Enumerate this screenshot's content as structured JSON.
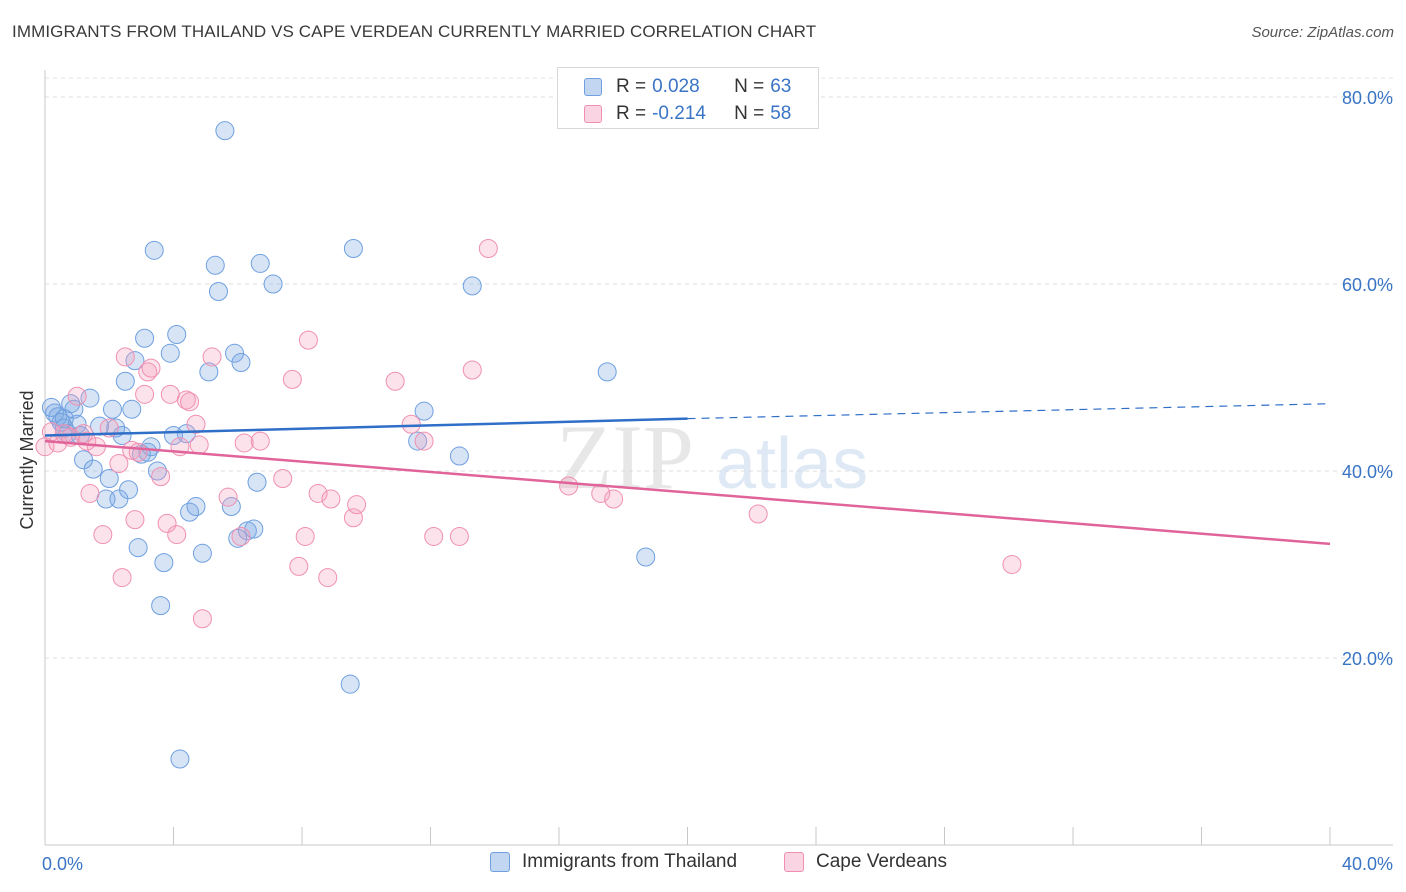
{
  "header": {
    "title": "IMMIGRANTS FROM THAILAND VS CAPE VERDEAN CURRENTLY MARRIED CORRELATION CHART",
    "source": "Source: ZipAtlas.com"
  },
  "watermark": {
    "zip": "ZIP",
    "atlas": "atlas"
  },
  "legend_top": {
    "rows": [
      {
        "r_label": "R =",
        "r_value": "0.028",
        "n_label": "N =",
        "n_value": "63",
        "color": "#6fa0e0"
      },
      {
        "r_label": "R =",
        "r_value": "-0.214",
        "n_label": "N =",
        "n_value": "58",
        "color": "#f090b0"
      }
    ]
  },
  "legend_bottom": {
    "items": [
      {
        "label": "Immigrants from Thailand",
        "color": "#6fa0e0"
      },
      {
        "label": "Cape Verdeans",
        "color": "#f090b0"
      }
    ]
  },
  "chart_data": {
    "type": "scatter",
    "title": "IMMIGRANTS FROM THAILAND VS CAPE VERDEAN CURRENTLY MARRIED CORRELATION CHART",
    "xlabel": "",
    "ylabel": "Currently Married",
    "xlim": [
      0,
      40
    ],
    "ylim": [
      0,
      85
    ],
    "x_tick_labels": [
      {
        "value": 0,
        "label": "0.0%"
      },
      {
        "value": 40,
        "label": "40.0%"
      }
    ],
    "y_tick_labels": [
      {
        "value": 20,
        "label": "20.0%"
      },
      {
        "value": 40,
        "label": "40.0%"
      },
      {
        "value": 60,
        "label": "60.0%"
      },
      {
        "value": 80,
        "label": "80.0%"
      }
    ],
    "grid": true,
    "legend_position": "top-center",
    "series": [
      {
        "name": "Immigrants from Thailand",
        "color": "#6fa0e0",
        "fill": "rgba(120,165,225,0.30)",
        "trend": {
          "x": [
            0,
            20
          ],
          "y": [
            43.8,
            45.6
          ],
          "dashed_extension": {
            "x": [
              20,
              40
            ],
            "y": [
              45.6,
              47.2
            ]
          }
        },
        "points": [
          [
            0.2,
            46.8
          ],
          [
            0.3,
            46.2
          ],
          [
            0.4,
            45.8
          ],
          [
            0.5,
            45.2
          ],
          [
            0.6,
            44.6
          ],
          [
            0.7,
            44.0
          ],
          [
            0.8,
            47.2
          ],
          [
            0.9,
            46.6
          ],
          [
            1.0,
            45.0
          ],
          [
            1.1,
            43.8
          ],
          [
            1.2,
            41.2
          ],
          [
            1.4,
            47.8
          ],
          [
            1.5,
            40.2
          ],
          [
            1.7,
            44.8
          ],
          [
            1.9,
            37.0
          ],
          [
            2.0,
            39.2
          ],
          [
            2.1,
            46.6
          ],
          [
            2.3,
            37.0
          ],
          [
            2.4,
            43.8
          ],
          [
            2.5,
            49.6
          ],
          [
            2.6,
            38.0
          ],
          [
            2.7,
            46.6
          ],
          [
            2.8,
            51.8
          ],
          [
            2.9,
            31.8
          ],
          [
            3.0,
            41.8
          ],
          [
            3.1,
            54.2
          ],
          [
            3.2,
            42.0
          ],
          [
            3.3,
            42.6
          ],
          [
            3.4,
            63.6
          ],
          [
            3.5,
            40.0
          ],
          [
            3.6,
            25.6
          ],
          [
            3.7,
            30.2
          ],
          [
            3.9,
            52.6
          ],
          [
            4.0,
            43.8
          ],
          [
            4.1,
            54.6
          ],
          [
            4.2,
            9.2
          ],
          [
            4.4,
            44.0
          ],
          [
            4.5,
            35.6
          ],
          [
            4.7,
            36.2
          ],
          [
            4.9,
            31.2
          ],
          [
            5.1,
            50.6
          ],
          [
            5.3,
            62.0
          ],
          [
            5.4,
            59.2
          ],
          [
            5.6,
            76.4
          ],
          [
            5.8,
            36.2
          ],
          [
            5.9,
            52.6
          ],
          [
            6.0,
            32.8
          ],
          [
            6.1,
            51.6
          ],
          [
            6.3,
            33.6
          ],
          [
            6.5,
            33.8
          ],
          [
            6.6,
            38.8
          ],
          [
            6.7,
            62.2
          ],
          [
            7.1,
            60.0
          ],
          [
            9.5,
            17.2
          ],
          [
            9.6,
            63.8
          ],
          [
            11.6,
            43.2
          ],
          [
            11.8,
            46.4
          ],
          [
            12.9,
            41.6
          ],
          [
            13.3,
            59.8
          ],
          [
            17.5,
            50.6
          ],
          [
            18.7,
            30.8
          ],
          [
            2.2,
            44.6
          ],
          [
            0.6,
            45.6
          ]
        ]
      },
      {
        "name": "Cape Verdeans",
        "color": "#f090b0",
        "fill": "rgba(244,160,190,0.30)",
        "trend": {
          "x": [
            0,
            40
          ],
          "y": [
            43.2,
            32.2
          ]
        },
        "points": [
          [
            0.0,
            42.6
          ],
          [
            0.2,
            44.2
          ],
          [
            0.4,
            43.0
          ],
          [
            0.6,
            44.0
          ],
          [
            0.8,
            43.6
          ],
          [
            1.0,
            48.0
          ],
          [
            1.2,
            44.0
          ],
          [
            1.4,
            37.6
          ],
          [
            1.6,
            42.6
          ],
          [
            1.8,
            33.2
          ],
          [
            2.0,
            44.6
          ],
          [
            2.3,
            40.8
          ],
          [
            2.4,
            28.6
          ],
          [
            2.5,
            52.2
          ],
          [
            2.7,
            42.2
          ],
          [
            2.8,
            34.8
          ],
          [
            3.1,
            48.2
          ],
          [
            3.2,
            50.6
          ],
          [
            3.3,
            51.0
          ],
          [
            3.6,
            39.4
          ],
          [
            3.8,
            34.4
          ],
          [
            3.9,
            48.2
          ],
          [
            4.1,
            33.2
          ],
          [
            4.2,
            42.6
          ],
          [
            4.4,
            47.6
          ],
          [
            4.5,
            47.4
          ],
          [
            4.8,
            42.8
          ],
          [
            4.9,
            24.2
          ],
          [
            4.7,
            45.0
          ],
          [
            5.2,
            52.2
          ],
          [
            5.7,
            37.2
          ],
          [
            6.1,
            33.0
          ],
          [
            6.2,
            43.0
          ],
          [
            6.7,
            43.2
          ],
          [
            7.4,
            39.2
          ],
          [
            7.7,
            49.8
          ],
          [
            7.9,
            29.8
          ],
          [
            8.1,
            33.0
          ],
          [
            8.2,
            54.0
          ],
          [
            8.5,
            37.6
          ],
          [
            8.8,
            28.6
          ],
          [
            8.9,
            37.0
          ],
          [
            9.6,
            35.0
          ],
          [
            9.7,
            36.4
          ],
          [
            10.9,
            49.6
          ],
          [
            11.4,
            45.0
          ],
          [
            11.8,
            43.2
          ],
          [
            12.1,
            33.0
          ],
          [
            12.9,
            33.0
          ],
          [
            13.3,
            50.8
          ],
          [
            13.8,
            63.8
          ],
          [
            16.3,
            38.4
          ],
          [
            17.3,
            37.6
          ],
          [
            17.7,
            37.0
          ],
          [
            22.2,
            35.4
          ],
          [
            30.1,
            30.0
          ],
          [
            1.3,
            43.2
          ],
          [
            2.9,
            42.0
          ]
        ]
      }
    ]
  }
}
